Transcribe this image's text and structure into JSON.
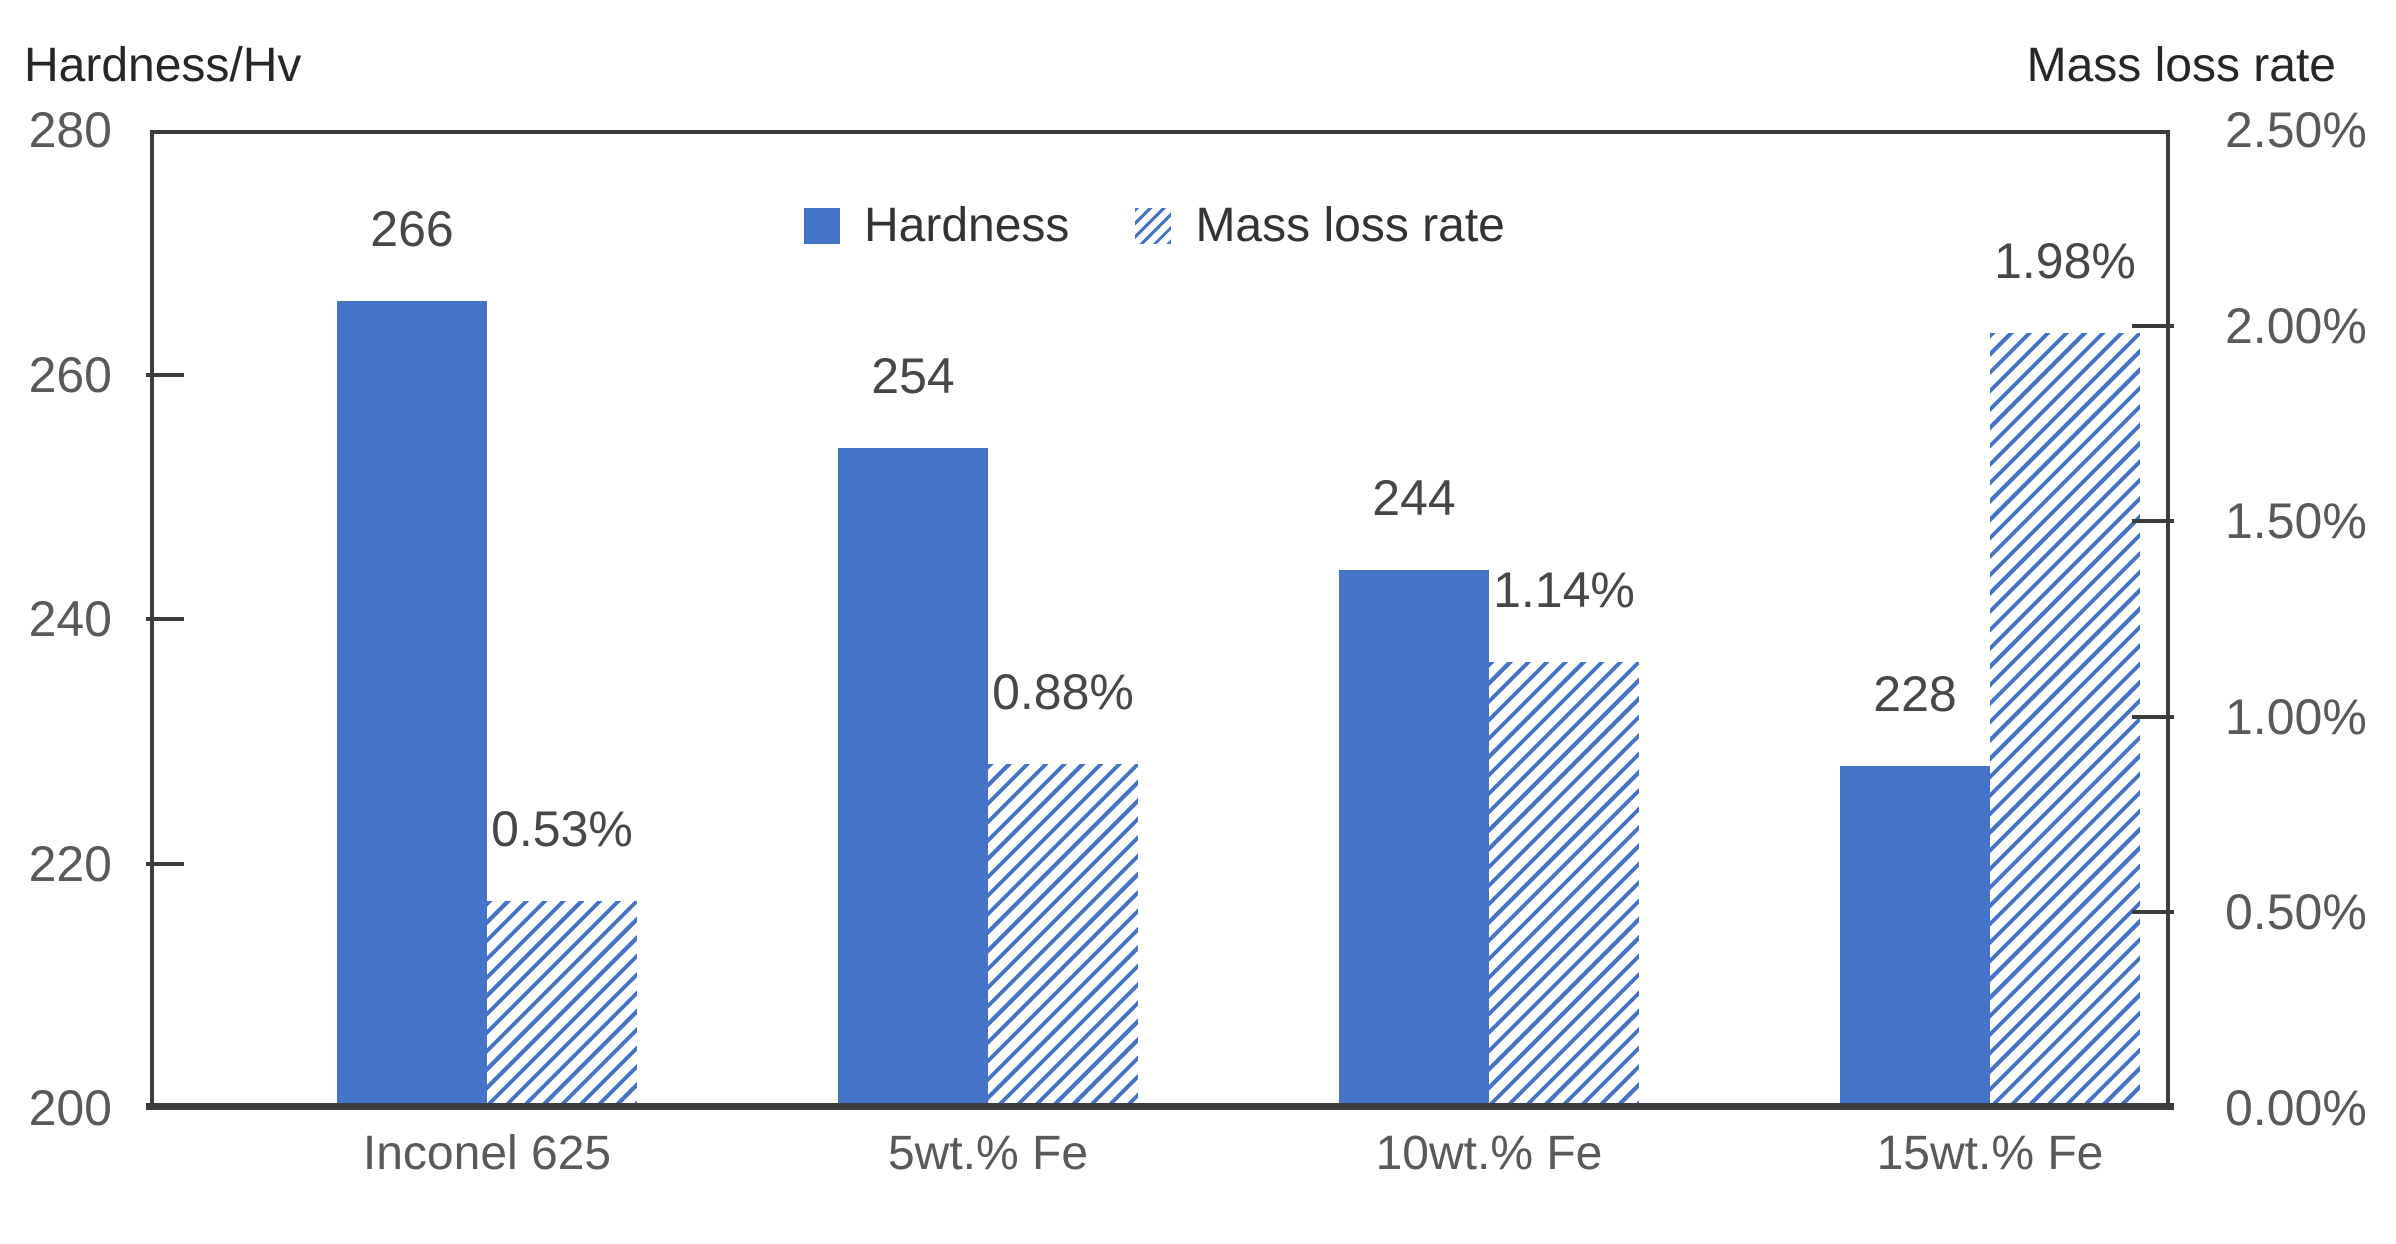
{
  "chart_data": {
    "type": "bar",
    "categories": [
      "Inconel 625",
      "5wt.% Fe",
      "10wt.% Fe",
      "15wt.% Fe"
    ],
    "series": [
      {
        "name": "Hardness",
        "axis": "left",
        "marker": "solid",
        "values": [
          266,
          254,
          244,
          228
        ],
        "data_labels": [
          "266",
          "254",
          "244",
          "228"
        ]
      },
      {
        "name": "Mass loss rate",
        "axis": "right",
        "marker": "hatched",
        "values": [
          0.53,
          0.88,
          1.14,
          1.98
        ],
        "data_labels": [
          "0.53%",
          "0.88%",
          "1.14%",
          "1.98%"
        ]
      }
    ],
    "left_axis": {
      "title": "Hardness/Hv",
      "min": 200,
      "max": 280,
      "tick_step": 20,
      "tick_labels": [
        "280",
        "260",
        "240",
        "220",
        "200"
      ]
    },
    "right_axis": {
      "title": "Mass loss rate",
      "min": 0,
      "max": 2.5,
      "tick_step": 0.5,
      "tick_labels": [
        "2.50%",
        "2.00%",
        "1.50%",
        "1.00%",
        "0.50%",
        "0.00%"
      ]
    },
    "legend": {
      "position": "top-center",
      "items": [
        {
          "label": "Hardness",
          "marker": "solid"
        },
        {
          "label": "Mass loss rate",
          "marker": "hatched"
        }
      ]
    },
    "grid": false,
    "plot_border": true
  },
  "colors": {
    "bar_blue": "#4573C8",
    "border": "#3C3C3C",
    "tick_text": "#595959",
    "data_label_text": "#474747",
    "axis_title_text": "#262626",
    "legend_text": "#333333"
  }
}
